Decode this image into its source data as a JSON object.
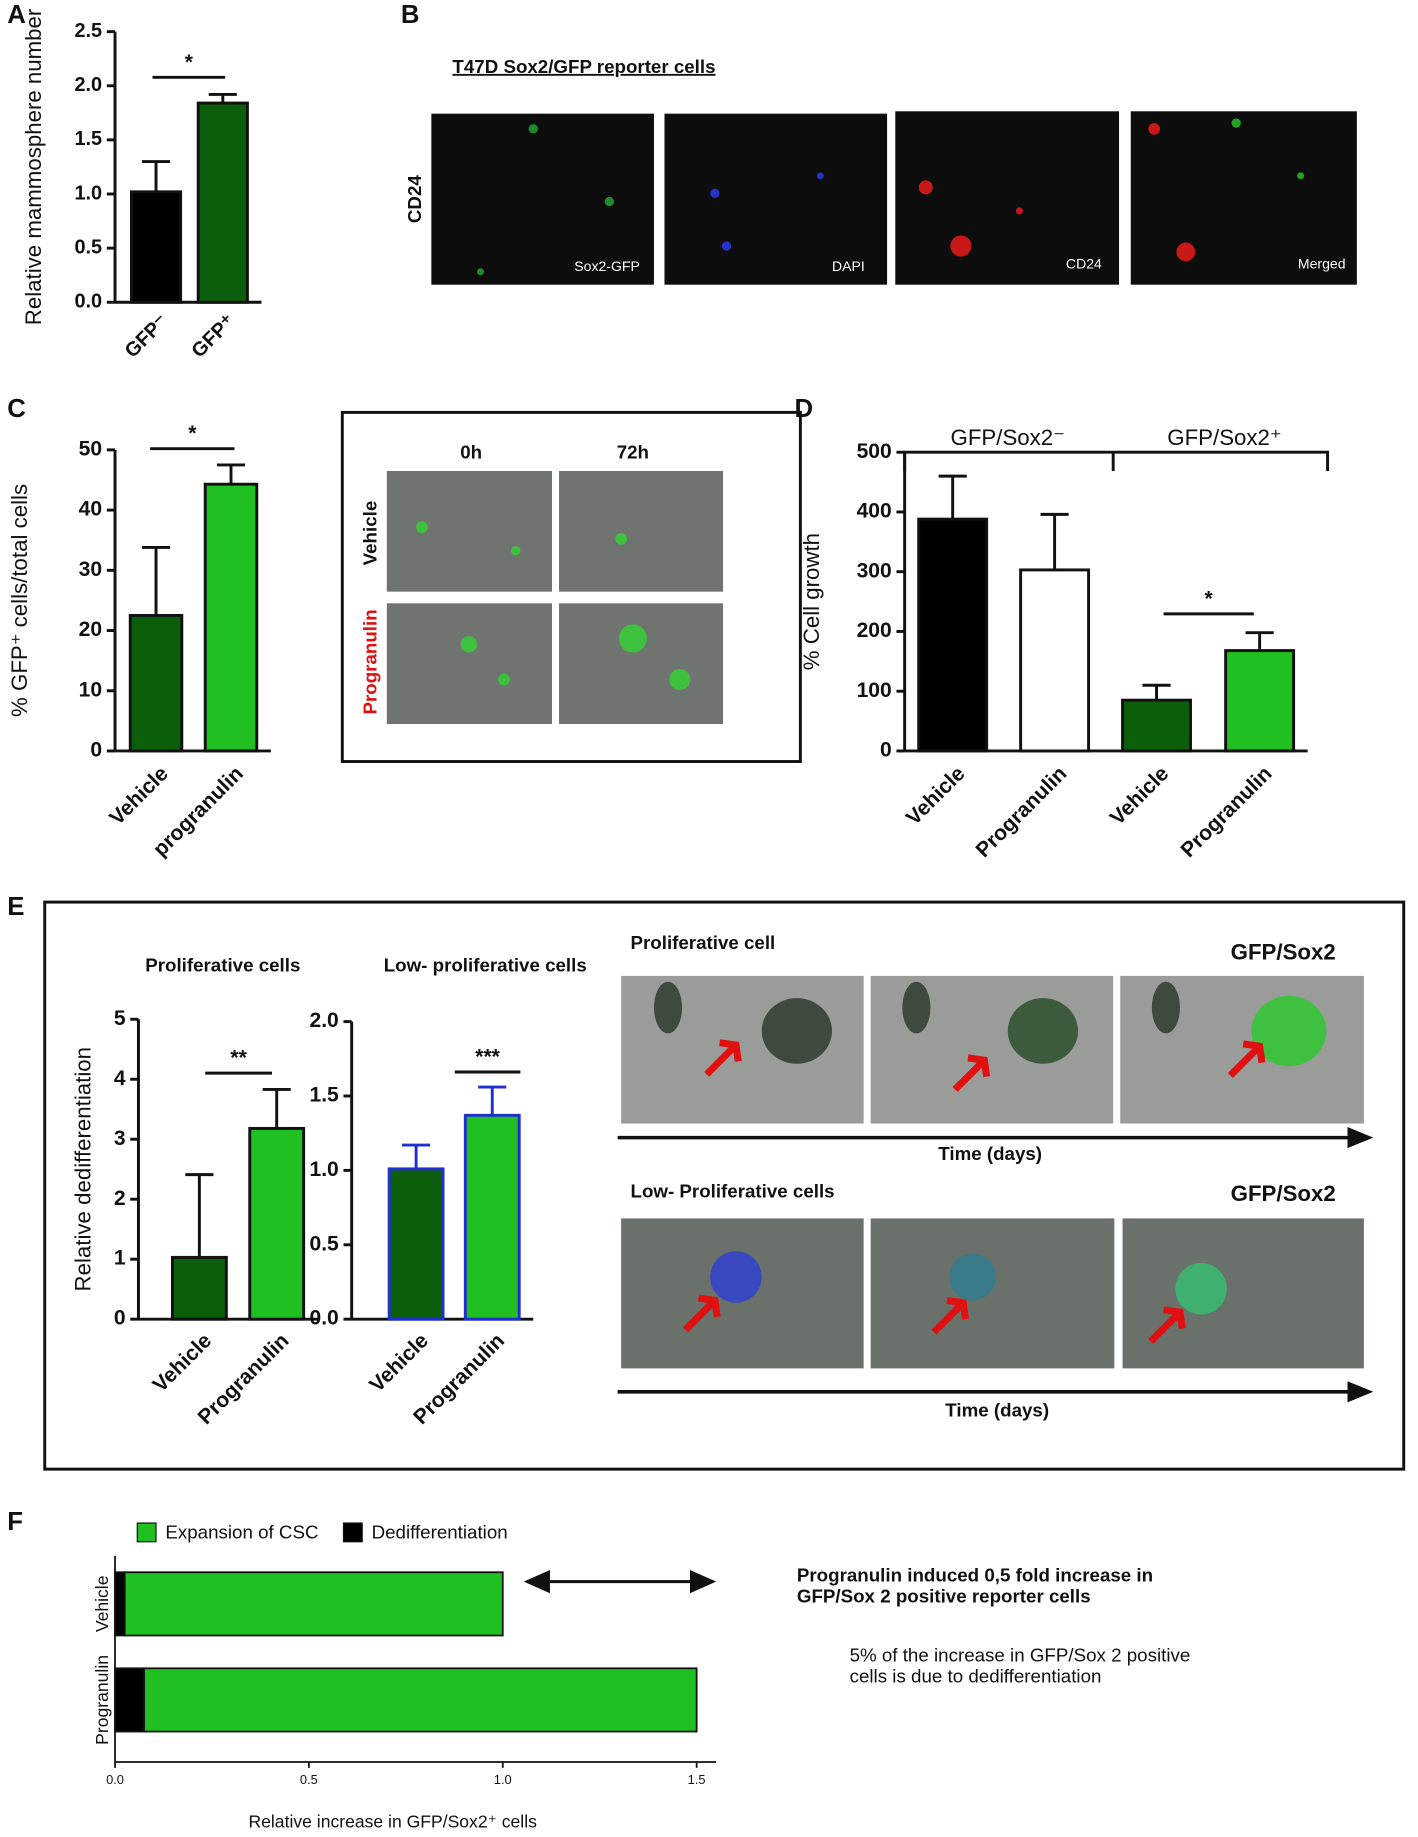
{
  "panels": [
    "A",
    "B",
    "C",
    "D",
    "E",
    "F"
  ],
  "panel_b": {
    "title": "T47D Sox2/GFP reporter cells",
    "row_label": "CD24",
    "images": [
      "Sox2-GFP",
      "DAPI",
      "CD24",
      "Merged"
    ]
  },
  "panel_c_image": {
    "columns": [
      "0h",
      "72h"
    ],
    "rows": [
      "Vehicle",
      "Progranulin"
    ]
  },
  "panel_e_images": {
    "top_title": "Proliferative cell",
    "top_tag": "GFP/Sox2",
    "top_axis": "Time (days)",
    "bottom_title": "Low- Proliferative cells",
    "bottom_tag": "GFP/Sox2",
    "bottom_axis": "Time (days)"
  },
  "panel_f_notes": [
    "Progranulin induced 0,5 fold increase in GFP/Sox 2 positive reporter cells",
    "5% of the increase in GFP/Sox 2 positive cells is due to dedifferentiation"
  ],
  "chart_data": [
    {
      "type": "bar",
      "ylabel": "Relative mammosphere number",
      "categories": [
        "GFP⁻",
        "GFP⁺"
      ],
      "values": [
        1.02,
        1.84
      ],
      "errors": [
        0.28,
        0.08
      ],
      "colors": [
        "#000000",
        "#0b5e0b"
      ],
      "ylim": [
        0,
        2.5
      ],
      "yticks": [
        {
          "value": 0,
          "label": "0.0"
        },
        {
          "value": 0.5,
          "label": "0.5"
        },
        {
          "value": 1,
          "label": "1.0"
        },
        {
          "value": 1.5,
          "label": "1.5"
        },
        {
          "value": 2,
          "label": "2.0"
        },
        {
          "value": 2.5,
          "label": "2.5"
        }
      ],
      "significance": "*"
    },
    {
      "type": "bar",
      "ylabel": "% GFP⁺ cells/total cells",
      "categories": [
        "Vehicle",
        "progranulin"
      ],
      "values": [
        22.5,
        44.3
      ],
      "errors": [
        11.3,
        3.2
      ],
      "colors": [
        "#0b5e0b",
        "#21c021"
      ],
      "ylim": [
        0,
        50
      ],
      "yticks": [
        0,
        10,
        20,
        30,
        40,
        50
      ],
      "significance": "*"
    },
    {
      "type": "bar",
      "ylabel": "% Cell growth",
      "groups": [
        "GFP/Sox2⁻",
        "GFP/Sox2⁺"
      ],
      "categories": [
        "Vehicle",
        "Progranulin",
        "Vehicle",
        "Progranulin"
      ],
      "values": [
        388,
        303,
        85,
        168
      ],
      "errors": [
        72,
        93,
        25,
        30
      ],
      "colors": [
        "#000000",
        "#ffffff",
        "#0b5e0b",
        "#21c021"
      ],
      "ylim": [
        0,
        500
      ],
      "yticks": [
        0,
        100,
        200,
        300,
        400,
        500
      ],
      "significance": "*"
    },
    {
      "type": "bar",
      "title": "Proliferative cells",
      "ylabel": "Relative dedifferentiation",
      "categories": [
        "Vehicle",
        "Progranulin"
      ],
      "values": [
        1.03,
        3.18
      ],
      "errors": [
        1.38,
        0.65
      ],
      "colors": [
        "#0b5e0b",
        "#21c021"
      ],
      "ylim": [
        0,
        5
      ],
      "yticks": [
        0,
        1,
        2,
        3,
        4,
        5
      ],
      "significance": "**"
    },
    {
      "type": "bar",
      "title": "Low- proliferative cells",
      "categories": [
        "Vehicle",
        "Progranulin"
      ],
      "values": [
        1.01,
        1.37
      ],
      "errors": [
        0.16,
        0.19
      ],
      "colors": [
        "#0b5e0b",
        "#21c021"
      ],
      "edge_color": "#1f2fd0",
      "ylim": [
        0,
        2
      ],
      "yticks": [
        {
          "value": 0,
          "label": "0.0"
        },
        {
          "value": 0.5,
          "label": "0.5"
        },
        {
          "value": 1,
          "label": "1.0"
        },
        {
          "value": 1.5,
          "label": "1.5"
        },
        {
          "value": 2,
          "label": "2.0"
        }
      ],
      "significance": "***"
    },
    {
      "type": "hbar_stacked",
      "xlabel": "Relative increase in GFP/Sox2⁺ cells",
      "categories": [
        "Vehicle",
        "Progranulin"
      ],
      "series": [
        {
          "name": "Expansion of CSC",
          "color": "#21c021",
          "values": [
            0.975,
            1.425
          ]
        },
        {
          "name": "Dedifferentiation",
          "color": "#000000",
          "values": [
            0.025,
            0.075
          ]
        }
      ],
      "xlim": [
        0,
        1.55
      ],
      "xticks": [
        {
          "value": 0,
          "label": "0.0"
        },
        {
          "value": 0.5,
          "label": "0.5"
        },
        {
          "value": 1,
          "label": "1.0"
        },
        {
          "value": 1.5,
          "label": "1.5"
        }
      ]
    }
  ]
}
